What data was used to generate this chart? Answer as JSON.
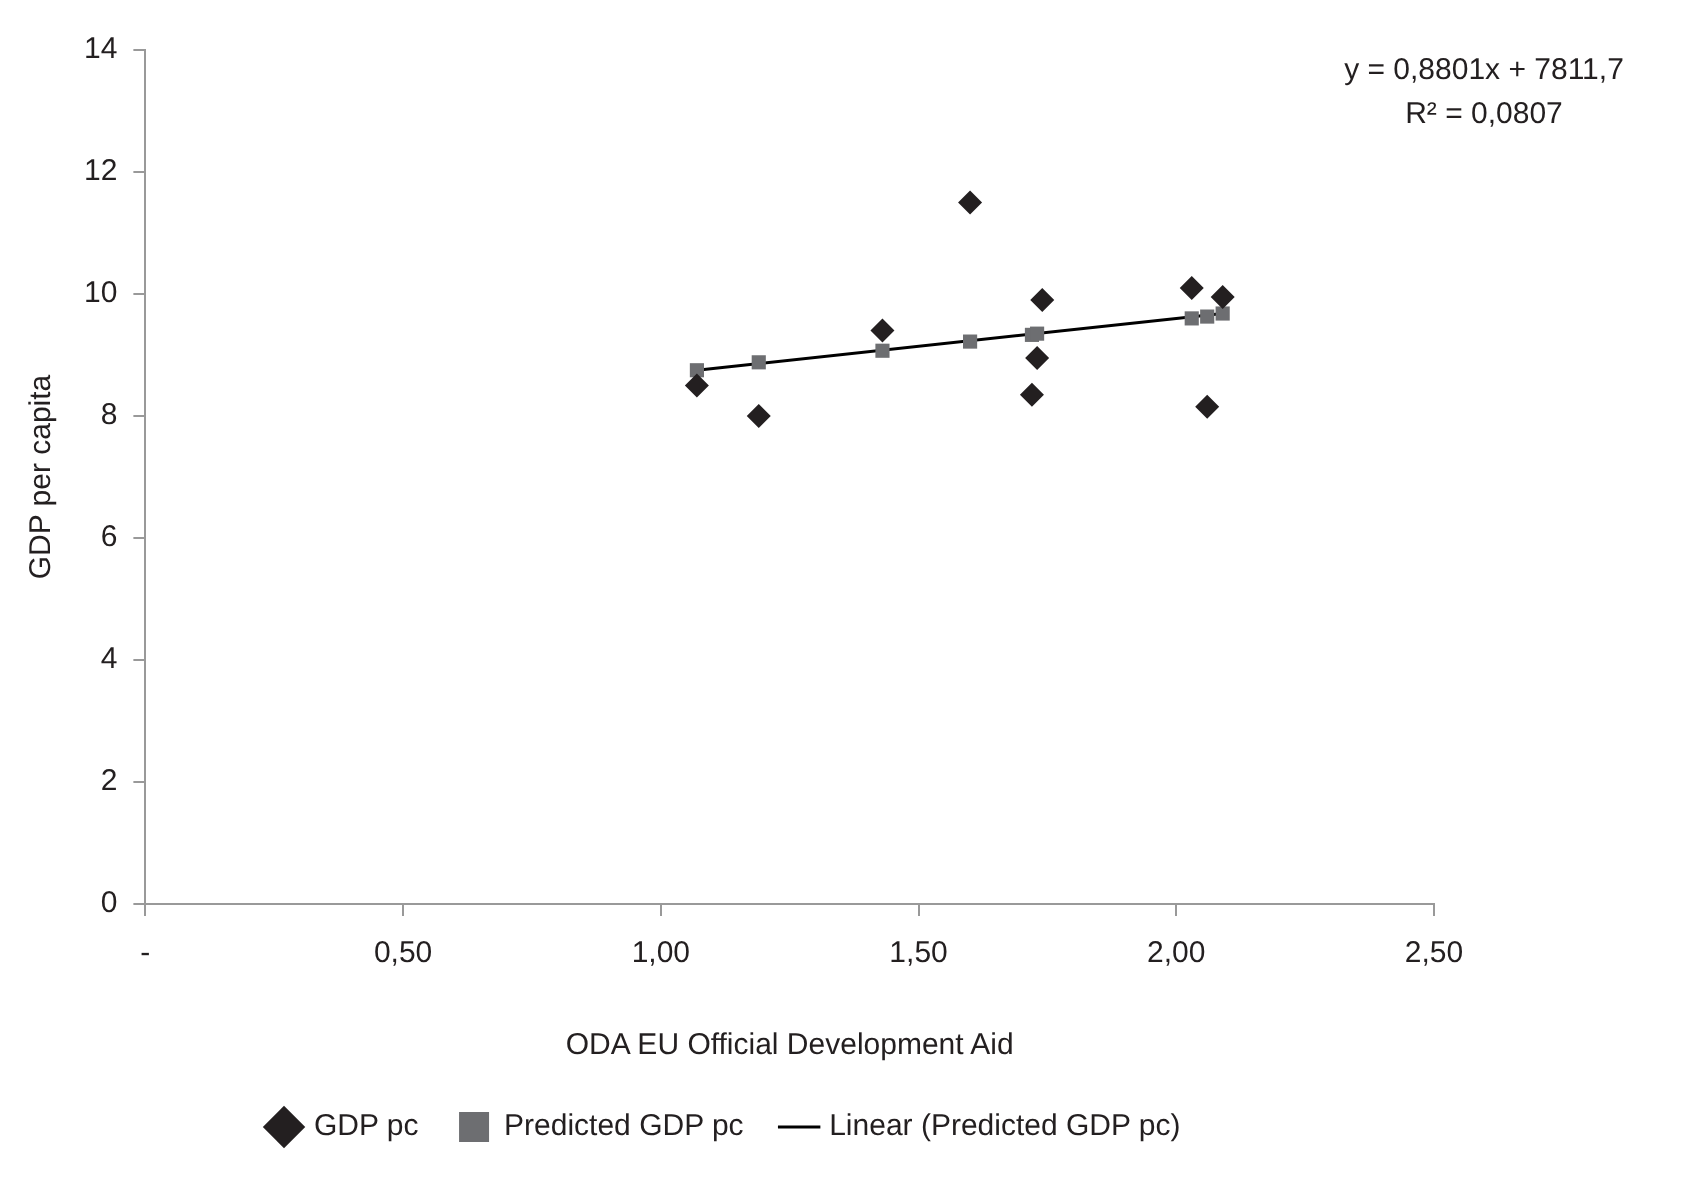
{
  "chart_data": {
    "type": "scatter",
    "xlabel": "ODA EU Official Development Aid",
    "ylabel": "GDP per capita",
    "xlim": [
      0,
      2.5
    ],
    "xticks": [
      {
        "value": 0,
        "label": "-"
      },
      {
        "value": 0.5,
        "label": "0,50"
      },
      {
        "value": 1,
        "label": "1,00"
      },
      {
        "value": 1.5,
        "label": "1,50"
      },
      {
        "value": 2,
        "label": "2,00"
      },
      {
        "value": 2.5,
        "label": "2,50"
      }
    ],
    "ylim": [
      0,
      14
    ],
    "yticks": [
      0,
      2,
      4,
      6,
      8,
      10,
      12,
      14
    ],
    "grid": false,
    "legend": "bottom",
    "annotations": [
      "y = 0,8801x + 7811,7",
      "R² = 0,0807"
    ],
    "series": [
      {
        "name": "GDP pc",
        "type": "scatter",
        "marker": "diamond",
        "color": "#231f20",
        "x": [
          1.07,
          1.19,
          1.43,
          1.6,
          1.72,
          1.73,
          1.74,
          2.03,
          2.06,
          2.09
        ],
        "values": [
          8.5,
          8.0,
          9.4,
          11.5,
          8.35,
          8.95,
          9.9,
          10.1,
          8.15,
          9.95
        ]
      },
      {
        "name": "Predicted GDP pc",
        "type": "scatter",
        "marker": "square",
        "color": "#6d6e71",
        "x": [
          1.07,
          1.19,
          1.43,
          1.6,
          1.72,
          1.73,
          2.03,
          2.06,
          2.09
        ],
        "values": [
          8.75,
          8.88,
          9.07,
          9.22,
          9.33,
          9.35,
          9.6,
          9.63,
          9.68
        ]
      },
      {
        "name": "Linear (Predicted GDP pc)",
        "type": "line",
        "marker": "none",
        "line_style": "solid",
        "color": "#000000",
        "x": [
          1.07,
          2.09
        ],
        "values": [
          8.75,
          9.68
        ]
      }
    ]
  }
}
